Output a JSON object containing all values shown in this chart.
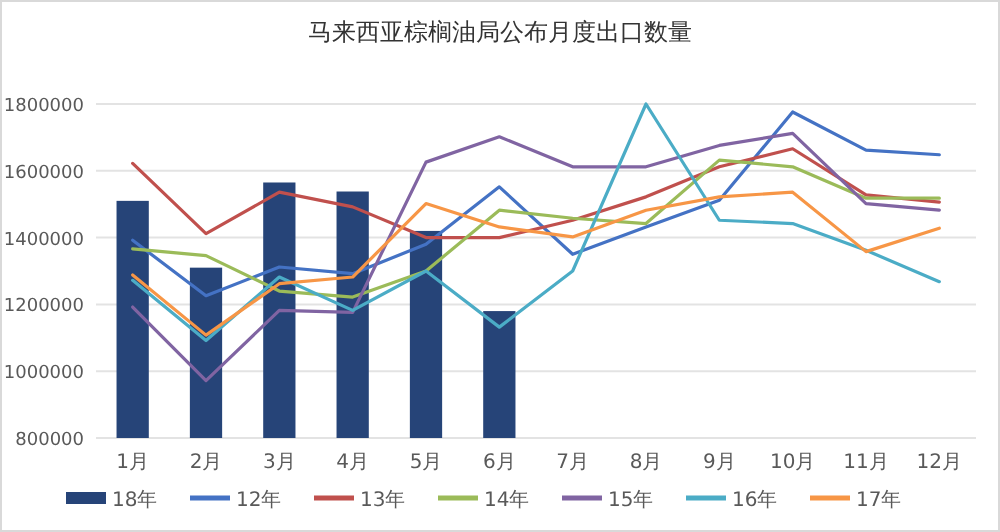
{
  "chart_data": {
    "type": "bar",
    "title": "马来西亚棕榈油局公布月度出口数量",
    "categories": [
      "1月",
      "2月",
      "3月",
      "4月",
      "5月",
      "6月",
      "7月",
      "8月",
      "9月",
      "10月",
      "11月",
      "12月"
    ],
    "series": [
      {
        "name": "18年",
        "color": "#264478",
        "values": [
          1510000,
          1310000,
          1565000,
          1538000,
          1420000,
          1180000,
          null,
          null,
          null,
          null,
          null,
          null
        ]
      },
      {
        "name": "12年",
        "type": "line",
        "color": "#4472c4",
        "values": [
          1392000,
          1226000,
          1312000,
          1292000,
          1380000,
          1552000,
          1350000,
          1432000,
          1512000,
          1776000,
          1662000,
          1648000
        ]
      },
      {
        "name": "13年",
        "type": "line",
        "color": "#c0504d",
        "values": [
          1622000,
          1412000,
          1536000,
          1492000,
          1400000,
          1400000,
          1452000,
          1522000,
          1612000,
          1666000,
          1528000,
          1506000
        ]
      },
      {
        "name": "14年",
        "type": "line",
        "color": "#9bbb59",
        "values": [
          1366000,
          1346000,
          1240000,
          1222000,
          1300000,
          1482000,
          1458000,
          1442000,
          1632000,
          1612000,
          1518000,
          1518000
        ]
      },
      {
        "name": "15年",
        "type": "line",
        "color": "#8064a2",
        "values": [
          1192000,
          972000,
          1182000,
          1176000,
          1626000,
          1702000,
          1612000,
          1612000,
          1676000,
          1712000,
          1502000,
          1482000
        ]
      },
      {
        "name": "16年",
        "type": "line",
        "color": "#4bacc6",
        "values": [
          1272000,
          1092000,
          1282000,
          1182000,
          1300000,
          1132000,
          1300000,
          1800000,
          1452000,
          1442000,
          1362000,
          1268000
        ]
      },
      {
        "name": "17年",
        "type": "line",
        "color": "#f79646",
        "values": [
          1288000,
          1108000,
          1262000,
          1282000,
          1502000,
          1432000,
          1402000,
          1482000,
          1522000,
          1536000,
          1358000,
          1428000
        ]
      }
    ],
    "ylim": [
      800000,
      1800000
    ],
    "yticks": [
      800000,
      1000000,
      1200000,
      1400000,
      1600000,
      1800000
    ],
    "grid": "y",
    "legend": "bottom"
  }
}
